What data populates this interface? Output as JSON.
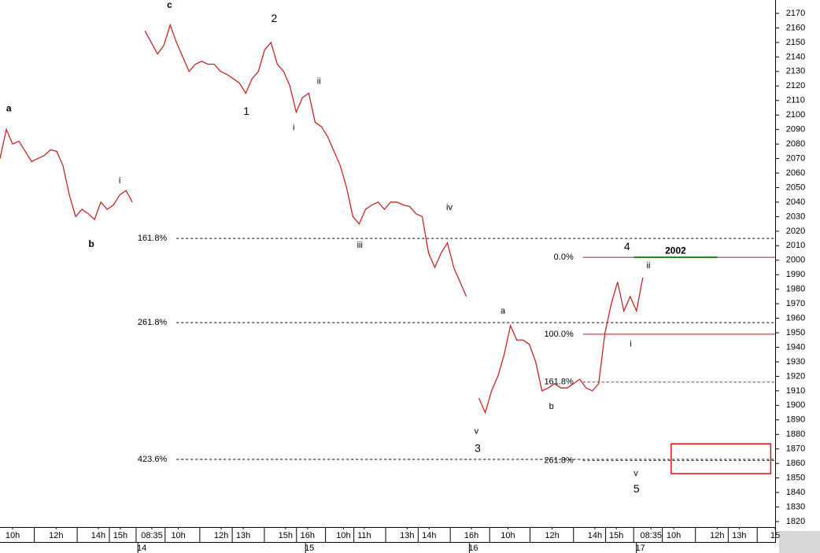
{
  "chart_data": {
    "type": "line",
    "series": [
      {
        "color": "#cc2222",
        "x": [
          0,
          1,
          2,
          3,
          4,
          5,
          6,
          7,
          8,
          9,
          10,
          11,
          12,
          13,
          14,
          15,
          16,
          17,
          18,
          19,
          20,
          21,
          22,
          23,
          24,
          25,
          26,
          27,
          28,
          29,
          30,
          31,
          32,
          33,
          34,
          35,
          36,
          37,
          38,
          39,
          40,
          41,
          42,
          43,
          44,
          45,
          46,
          47,
          48,
          49,
          50,
          51,
          52,
          53,
          54,
          55,
          56,
          57,
          58,
          59,
          60,
          61,
          62,
          63,
          64,
          65,
          66,
          67,
          68,
          69,
          70,
          71,
          72,
          73,
          74,
          75,
          76,
          77,
          78,
          79,
          80,
          81,
          82,
          83,
          84,
          85,
          86,
          87,
          88,
          89,
          90,
          91,
          92,
          93,
          94,
          95,
          96,
          97,
          98,
          99,
          100,
          101,
          102
        ],
        "values": [
          2070,
          2090,
          2080,
          2082,
          2075,
          2068,
          2070,
          2072,
          2076,
          2075,
          2065,
          2045,
          2030,
          2035,
          2032,
          2028,
          2040,
          2035,
          2038,
          2045,
          2048,
          2040,
          null,
          2158,
          2150,
          2142,
          2148,
          2162,
          2150,
          2140,
          2130,
          2135,
          2137,
          2135,
          2135,
          2130,
          2128,
          2125,
          2122,
          2115,
          2125,
          2130,
          2145,
          2150,
          2135,
          2130,
          2120,
          2102,
          2112,
          2115,
          2095,
          2092,
          2085,
          2075,
          2065,
          2050,
          2030,
          2025,
          2035,
          2038,
          2040,
          2035,
          2040,
          2040,
          2038,
          2037,
          2032,
          2030,
          2005,
          1995,
          2005,
          2012,
          1995,
          1985,
          1975,
          null,
          1905,
          1895,
          1910,
          1920,
          1935,
          1955,
          1945,
          1945,
          1942,
          1930,
          1910,
          1912,
          1915,
          1912,
          1912,
          1915,
          1918,
          1912,
          1910,
          1915,
          1950,
          1970,
          1985,
          1965,
          1975,
          1965,
          1988
        ]
      }
    ],
    "xlim": [
      0,
      123
    ],
    "ylim": [
      1820,
      2170
    ],
    "xticks": [
      {
        "value": 2,
        "label": "10h"
      },
      {
        "value": 8.9,
        "label": "12h"
      },
      {
        "value": 15.6,
        "label": "14h"
      },
      {
        "value": 19.1,
        "label": "15h"
      },
      {
        "value": 24.1,
        "label": "08:35"
      },
      {
        "value": 28.3,
        "label": "10h"
      },
      {
        "value": 35.1,
        "label": "12h"
      },
      {
        "value": 38.6,
        "label": "13h"
      },
      {
        "value": 45.3,
        "label": "15h"
      },
      {
        "value": 48.8,
        "label": "16h"
      },
      {
        "value": 54.5,
        "label": "10h"
      },
      {
        "value": 57.8,
        "label": "11h"
      },
      {
        "value": 64.6,
        "label": "13h"
      },
      {
        "value": 68.1,
        "label": "14h"
      },
      {
        "value": 74.8,
        "label": "16h"
      },
      {
        "value": 80.6,
        "label": "10h"
      },
      {
        "value": 87.6,
        "label": "12h"
      },
      {
        "value": 94.4,
        "label": "14h"
      },
      {
        "value": 97.8,
        "label": "15h"
      },
      {
        "value": 103.3,
        "label": "08:35"
      },
      {
        "value": 106.9,
        "label": "10h"
      },
      {
        "value": 113.8,
        "label": "12h"
      },
      {
        "value": 117.3,
        "label": "13h"
      },
      {
        "value": 123,
        "label": "15"
      }
    ],
    "day_ticks": [
      {
        "value": 22.5,
        "label": "14"
      },
      {
        "value": 49.1,
        "label": "15"
      },
      {
        "value": 75.1,
        "label": "16"
      },
      {
        "value": 101.6,
        "label": "17"
      }
    ],
    "yticks": [
      1820,
      1830,
      1840,
      1850,
      1860,
      1870,
      1880,
      1890,
      1900,
      1910,
      1920,
      1930,
      1940,
      1950,
      1960,
      1970,
      1980,
      1990,
      2000,
      2010,
      2020,
      2030,
      2040,
      2050,
      2060,
      2070,
      2080,
      2090,
      2100,
      2110,
      2120,
      2130,
      2140,
      2150,
      2160,
      2170
    ],
    "levels": [
      {
        "label": "161.8%",
        "value": 2015,
        "start": 28,
        "style": "dotted",
        "color": "#000"
      },
      {
        "label": "261.8%",
        "value": 1957,
        "start": 28,
        "style": "dotted",
        "color": "#000"
      },
      {
        "label": "423.6%",
        "value": 1862.8,
        "start": 28,
        "style": "dotted",
        "color": "#000"
      },
      {
        "label": "0.0%",
        "value": 2002,
        "start": 92.5,
        "style": "solid",
        "color": "#a02020"
      },
      {
        "label": "100.0%",
        "value": 1949,
        "start": 92.5,
        "style": "solid",
        "color": "#a02020"
      },
      {
        "label": "161.8%",
        "value": 1916,
        "start": 92.5,
        "style": "dotted",
        "color": "#a02020"
      },
      {
        "label": "261.8%",
        "value": 1862,
        "start": 92.5,
        "style": "dotted",
        "color": "#a02020"
      }
    ],
    "target": {
      "label": "2002",
      "value": 2002,
      "from": 100.6,
      "to": 113.8,
      "color": "#118811"
    },
    "box": {
      "x": [
        106.5,
        122.3
      ],
      "y": [
        1853,
        1873.5
      ],
      "color": "#dd1111"
    },
    "annotations": [
      {
        "text": "a",
        "x": 1.4,
        "y": 2104.4,
        "color": "#7a0000"
      },
      {
        "text": "b",
        "x": 14.5,
        "y": 2010.7,
        "color": "#7a0000"
      },
      {
        "text": "c",
        "x": 26.9,
        "y": 2175.4,
        "color": "#7a0000"
      },
      {
        "text": "i",
        "x": 19,
        "y": 2054.6,
        "color": "#2222cc"
      },
      {
        "text": "2",
        "x": 43.5,
        "y": 2166,
        "color": "#000"
      },
      {
        "text": "1",
        "x": 39.1,
        "y": 2102,
        "color": "#000"
      },
      {
        "text": "ii",
        "x": 50.6,
        "y": 2123,
        "color": "#000"
      },
      {
        "text": "i",
        "x": 46.6,
        "y": 2091,
        "color": "#000"
      },
      {
        "text": "iii",
        "x": 57.1,
        "y": 2010,
        "color": "#000"
      },
      {
        "text": "iv",
        "x": 71.3,
        "y": 2036,
        "color": "#000"
      },
      {
        "text": "v",
        "x": 75.6,
        "y": 1882,
        "color": "#000"
      },
      {
        "text": "3",
        "x": 75.8,
        "y": 1870,
        "color": "#000"
      },
      {
        "text": "a",
        "x": 79.8,
        "y": 1965,
        "color": "#000"
      },
      {
        "text": "b",
        "x": 87.5,
        "y": 1899,
        "color": "#000"
      },
      {
        "text": "4",
        "x": 99.5,
        "y": 2009,
        "color": "#000"
      },
      {
        "text": "ii",
        "x": 102.9,
        "y": 1996,
        "color": "#000"
      },
      {
        "text": "i",
        "x": 100.1,
        "y": 1942,
        "color": "#000"
      },
      {
        "text": "v",
        "x": 100.9,
        "y": 1853,
        "color": "#000"
      },
      {
        "text": "5",
        "x": 101,
        "y": 1842,
        "color": "#000"
      }
    ]
  }
}
